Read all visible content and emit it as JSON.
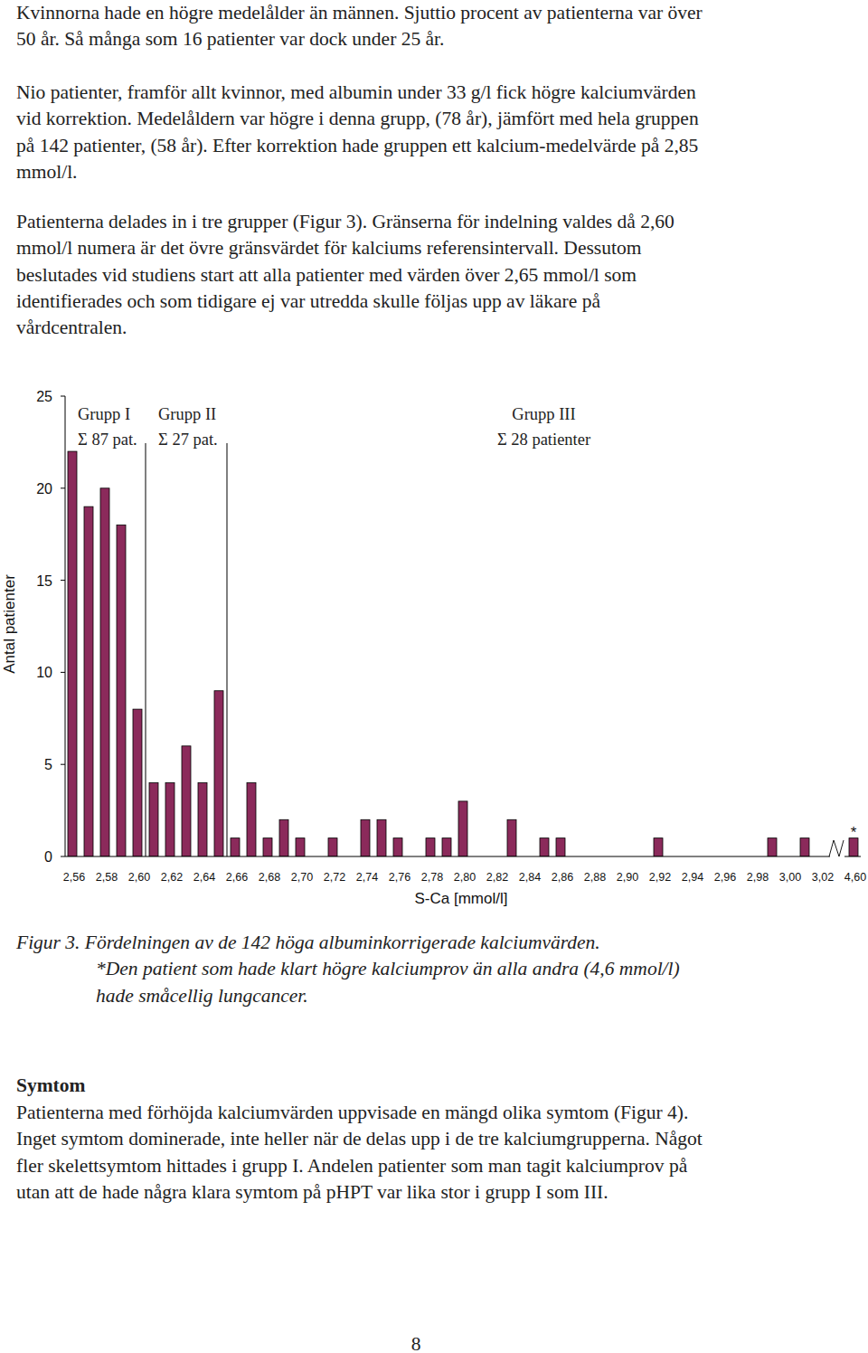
{
  "paragraphs": [
    {
      "lines": [
        "Kvinnorna hade en högre medelålder än männen. Sjuttio procent av patienterna var över",
        "50 år. Så många som 16 patienter var dock under 25 år."
      ]
    },
    {
      "lines": [
        "Nio patienter, framför allt kvinnor, med albumin under 33 g/l fick högre kalciumvärden",
        "vid korrektion. Medelåldern var högre i denna grupp, (78 år), jämfört med hela gruppen",
        "på 142 patienter, (58 år). Efter korrektion hade gruppen ett kalcium-medelvärde på 2,85",
        "mmol/l."
      ]
    },
    {
      "lines": [
        "Patienterna delades in i tre grupper (Figur 3). Gränserna för indelning valdes då 2,60",
        "mmol/l numera är det övre gränsvärdet för kalciums referensintervall. Dessutom",
        "beslutades vid studiens start att alla patienter med värden över 2,65 mmol/l som",
        "identifierades och som tidigare ej var utredda skulle följas upp av läkare på",
        "vårdcentralen."
      ]
    }
  ],
  "chart_data": {
    "type": "bar",
    "x_label": "S-Ca [mmol/l]",
    "y_label": "Antal patienter",
    "categories": [
      "2,56",
      null,
      "2,58",
      null,
      "2,60",
      null,
      "2,62",
      null,
      "2,64",
      null,
      "2,66",
      null,
      "2,68",
      null,
      "2,70",
      null,
      "2,72",
      null,
      "2,74",
      null,
      "2,76",
      null,
      "2,78",
      null,
      "2,80",
      null,
      "2,82",
      null,
      "2,84",
      null,
      "2,86",
      null,
      "2,88",
      null,
      "2,90",
      null,
      "2,92",
      null,
      "2,94",
      null,
      "2,96",
      null,
      "2,98",
      null,
      "3,00",
      null,
      "3,02",
      "4,60"
    ],
    "values": [
      22,
      19,
      20,
      18,
      8,
      4,
      4,
      6,
      4,
      9,
      1,
      4,
      1,
      2,
      1,
      0,
      1,
      0,
      2,
      2,
      1,
      0,
      1,
      1,
      3,
      0,
      0,
      2,
      0,
      1,
      1,
      0,
      0,
      0,
      0,
      0,
      1,
      0,
      0,
      0,
      0,
      0,
      0,
      1,
      0,
      1,
      0,
      1
    ],
    "color": "#8b2a5b",
    "ylim": [
      0,
      25
    ],
    "yticks": [
      0,
      5,
      10,
      15,
      20,
      25
    ],
    "grid": false,
    "groups": [
      {
        "label": "Grupp I",
        "total_label": "Σ 87 pat.",
        "count": 87
      },
      {
        "label": "Grupp II",
        "total_label": "Σ 27 pat.",
        "count": 27
      },
      {
        "label": "Grupp III",
        "total_label": "Σ 28 patienter",
        "count": 28
      }
    ],
    "annotations": [
      {
        "text": "*",
        "category": "4,60"
      }
    ]
  },
  "caption": {
    "lines": [
      "Figur 3. Fördelningen av de 142 höga albuminkorrigerade kalciumvärden.",
      "*Den patient som hade klart högre kalciumprov än alla andra (4,6 mmol/l)",
      "hade småcellig lungcancer."
    ]
  },
  "section": {
    "heading": "Symtom",
    "lines": [
      "Patienterna med förhöjda kalciumvärden uppvisade en mängd olika symtom (Figur 4).",
      "Inget symtom dominerade, inte heller när de delas upp i de tre kalciumgrupperna. Något",
      "fler skelettsymtom hittades i grupp I. Andelen patienter som man tagit kalciumprov på",
      "utan att de hade några klara symtom på pHPT var lika stor i grupp I som III."
    ]
  },
  "page_number": 8
}
